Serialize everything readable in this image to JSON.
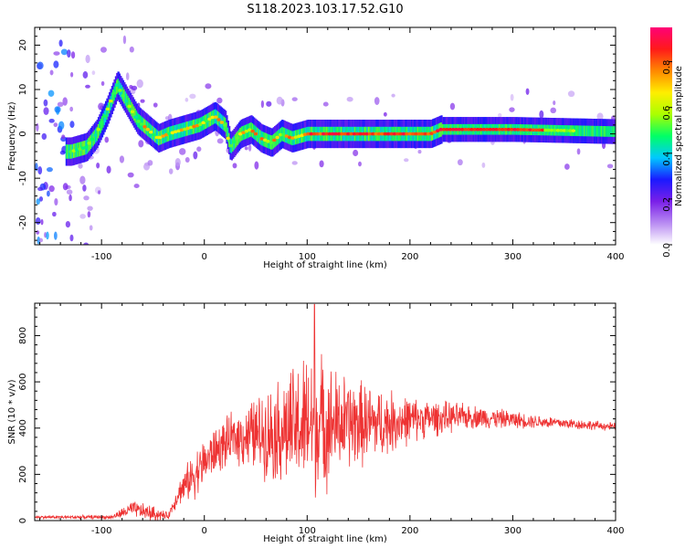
{
  "figure": {
    "title": "S118.2023.103.17.52.G10"
  },
  "chart_data": [
    {
      "type": "heatmap",
      "xlabel": "Height of straight line (km)",
      "ylabel": "Frequency (Hz)",
      "xlim": [
        -165,
        400
      ],
      "ylim": [
        -25,
        24
      ],
      "x_ticks": [
        "-100",
        "0",
        "100",
        "200",
        "300",
        "400"
      ],
      "y_ticks": [
        "-20",
        "-10",
        "0",
        "10",
        "20"
      ],
      "colorbar": {
        "label": "Normalized spectral amplitude",
        "range": [
          0,
          0.95
        ],
        "ticks": [
          "0.0",
          "0.2",
          "0.4",
          "0.6",
          "0.8"
        ],
        "colormap": [
          "#ffffff",
          "#b88bf2",
          "#7a1fe8",
          "#1a1aff",
          "#00c8ff",
          "#00ff66",
          "#aaff00",
          "#ffee00",
          "#ff8800",
          "#ff1a1a",
          "#ff0077"
        ]
      },
      "ridge_frequency_hz": [
        {
          "x": -130,
          "y": -4
        },
        {
          "x": -115,
          "y": -3
        },
        {
          "x": -105,
          "y": 0
        },
        {
          "x": -95,
          "y": 5
        },
        {
          "x": -85,
          "y": 11
        },
        {
          "x": -75,
          "y": 7
        },
        {
          "x": -65,
          "y": 3
        },
        {
          "x": -55,
          "y": 1
        },
        {
          "x": -45,
          "y": -1
        },
        {
          "x": -35,
          "y": 0
        },
        {
          "x": -20,
          "y": 1
        },
        {
          "x": -5,
          "y": 2
        },
        {
          "x": 10,
          "y": 4
        },
        {
          "x": 20,
          "y": 2
        },
        {
          "x": 25,
          "y": -3
        },
        {
          "x": 35,
          "y": 0
        },
        {
          "x": 45,
          "y": 1
        },
        {
          "x": 55,
          "y": -1
        },
        {
          "x": 65,
          "y": -2
        },
        {
          "x": 75,
          "y": 0
        },
        {
          "x": 85,
          "y": -1
        },
        {
          "x": 100,
          "y": 0
        },
        {
          "x": 150,
          "y": 0
        },
        {
          "x": 200,
          "y": 0
        },
        {
          "x": 220,
          "y": 0
        },
        {
          "x": 230,
          "y": 1
        },
        {
          "x": 300,
          "y": 1
        },
        {
          "x": 400,
          "y": 0.5
        }
      ]
    },
    {
      "type": "line",
      "xlabel": "Height of straight line (km)",
      "ylabel": "SNR (10 * v/v)",
      "xlim": [
        -165,
        400
      ],
      "ylim": [
        0,
        940
      ],
      "x_ticks": [
        "-100",
        "0",
        "100",
        "200",
        "300",
        "400"
      ],
      "y_ticks": [
        "0",
        "200",
        "400",
        "600",
        "800"
      ],
      "line_color": "#ee3333",
      "envelope": [
        {
          "x": -165,
          "mean": 15,
          "spread": 8
        },
        {
          "x": -90,
          "mean": 15,
          "spread": 10
        },
        {
          "x": -70,
          "mean": 50,
          "spread": 40
        },
        {
          "x": -50,
          "mean": 30,
          "spread": 40
        },
        {
          "x": -35,
          "mean": 20,
          "spread": 15
        },
        {
          "x": -25,
          "mean": 120,
          "spread": 60
        },
        {
          "x": -10,
          "mean": 200,
          "spread": 120
        },
        {
          "x": 10,
          "mean": 300,
          "spread": 120
        },
        {
          "x": 30,
          "mean": 360,
          "spread": 130
        },
        {
          "x": 60,
          "mean": 380,
          "spread": 220
        },
        {
          "x": 90,
          "mean": 400,
          "spread": 320
        },
        {
          "x": 105,
          "mean": 420,
          "spread": 380
        },
        {
          "x": 130,
          "mean": 420,
          "spread": 260
        },
        {
          "x": 170,
          "mean": 420,
          "spread": 180
        },
        {
          "x": 210,
          "mean": 440,
          "spread": 100
        },
        {
          "x": 260,
          "mean": 450,
          "spread": 60
        },
        {
          "x": 320,
          "mean": 430,
          "spread": 35
        },
        {
          "x": 400,
          "mean": 405,
          "spread": 20
        }
      ],
      "peak": {
        "x": 107,
        "y": 935
      }
    }
  ]
}
